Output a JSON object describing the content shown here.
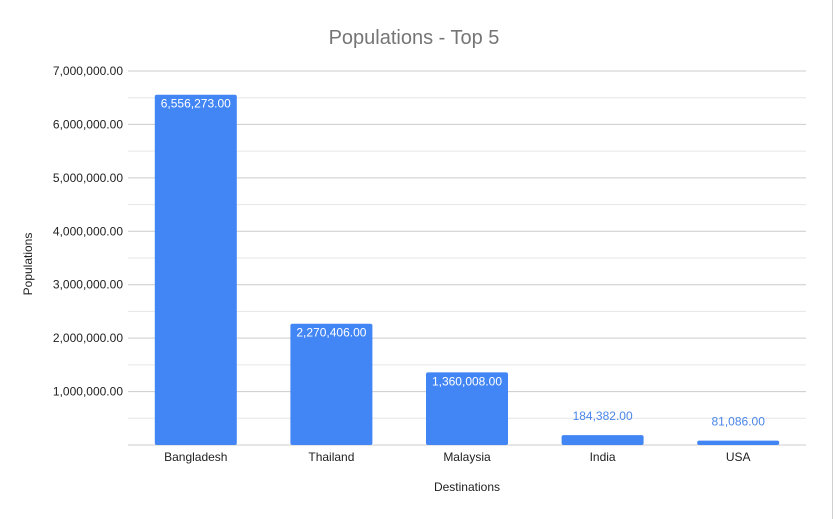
{
  "chart_data": {
    "type": "bar",
    "title": "Populations - Top 5",
    "xlabel": "Destinations",
    "ylabel": "Populations",
    "categories": [
      "Bangladesh",
      "Thailand",
      "Malaysia",
      "India",
      "USA"
    ],
    "values": [
      6556273,
      2270406,
      1360008,
      184382,
      81086
    ],
    "data_labels": [
      "6,556,273.00",
      "2,270,406.00",
      "1,360,008.00",
      "184,382.00",
      "81,086.00"
    ],
    "ylim": [
      0,
      7000000
    ],
    "y_ticks": [
      1000000,
      2000000,
      3000000,
      4000000,
      5000000,
      6000000,
      7000000
    ],
    "y_tick_labels": [
      "1,000,000.00",
      "2,000,000.00",
      "3,000,000.00",
      "4,000,000.00",
      "5,000,000.00",
      "6,000,000.00",
      "7,000,000.00"
    ],
    "grid": true,
    "legend": "none",
    "colors": {
      "bar": "#4285f4",
      "label_inside": "#ffffff",
      "label_outside": "#4a86e8",
      "title": "#757575",
      "text": "#222222",
      "major_grid": "#cccccc",
      "minor_grid": "#e6e6e6"
    }
  }
}
